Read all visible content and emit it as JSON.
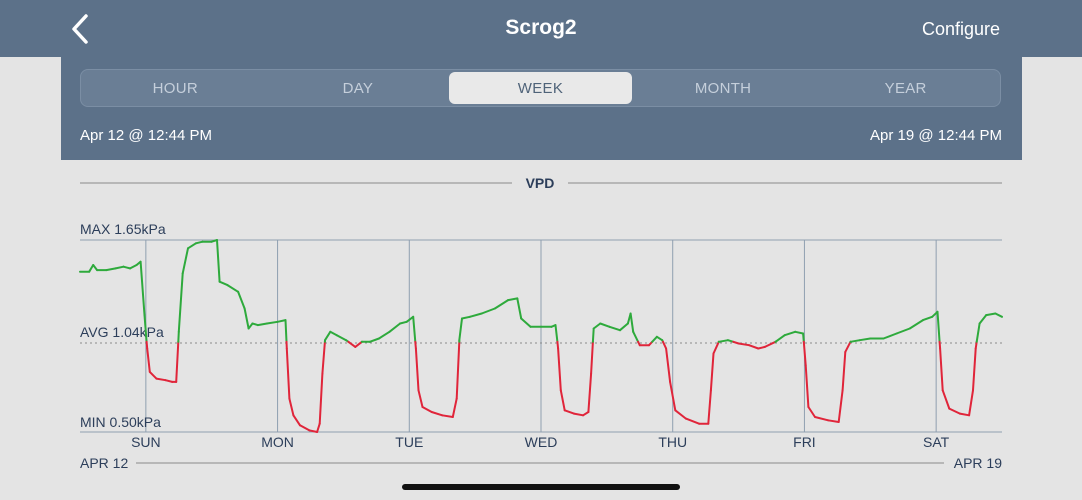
{
  "nav": {
    "title": "Scrog2",
    "configure_label": "Configure",
    "back_icon": "chevron-left-icon"
  },
  "range_tabs": [
    "HOUR",
    "DAY",
    "WEEK",
    "MONTH",
    "YEAR"
  ],
  "selected_tab": "WEEK",
  "date_range": {
    "start": "Apr 12 @ 12:44 PM",
    "end": "Apr 19 @ 12:44 PM"
  },
  "colors": {
    "header": "#5c7189",
    "above_avg": "#2eaa3c",
    "below_avg": "#e0253a",
    "grid": "#8f9fb0"
  },
  "chart_data": {
    "type": "line",
    "title": "VPD",
    "unit": "kPa",
    "y_max_label": "MAX 1.65kPa",
    "y_avg_label": "AVG 1.04kPa",
    "y_min_label": "MIN 0.50kPa",
    "ymax": 1.65,
    "yavg": 1.04,
    "ymin": 0.5,
    "ylim": [
      0.5,
      1.65
    ],
    "x_range": [
      0,
      7
    ],
    "x_labels": [
      "SUN",
      "MON",
      "TUE",
      "WED",
      "THU",
      "FRI",
      "SAT"
    ],
    "x_label_days": [
      0.5,
      1.5,
      2.5,
      3.5,
      4.5,
      5.5,
      6.5
    ],
    "start_date_label": "APR 12",
    "end_date_label": "APR 19",
    "series": [
      {
        "color_rule": "green above average, red below average",
        "points": [
          [
            0.0,
            1.46
          ],
          [
            0.07,
            1.46
          ],
          [
            0.1,
            1.5
          ],
          [
            0.13,
            1.47
          ],
          [
            0.2,
            1.47
          ],
          [
            0.27,
            1.48
          ],
          [
            0.33,
            1.49
          ],
          [
            0.38,
            1.48
          ],
          [
            0.43,
            1.5
          ],
          [
            0.46,
            1.52
          ],
          [
            0.49,
            1.2
          ],
          [
            0.51,
            1.0
          ],
          [
            0.53,
            0.86
          ],
          [
            0.58,
            0.82
          ],
          [
            0.65,
            0.81
          ],
          [
            0.7,
            0.8
          ],
          [
            0.73,
            0.8
          ],
          [
            0.75,
            1.1
          ],
          [
            0.78,
            1.45
          ],
          [
            0.82,
            1.6
          ],
          [
            0.88,
            1.63
          ],
          [
            0.93,
            1.64
          ],
          [
            1.0,
            1.64
          ],
          [
            1.04,
            1.65
          ],
          [
            1.06,
            1.4
          ],
          [
            1.12,
            1.38
          ],
          [
            1.2,
            1.34
          ],
          [
            1.25,
            1.24
          ],
          [
            1.28,
            1.12
          ],
          [
            1.31,
            1.15
          ],
          [
            1.35,
            1.14
          ],
          [
            1.42,
            1.15
          ],
          [
            1.5,
            1.16
          ],
          [
            1.56,
            1.17
          ],
          [
            1.57,
            1.0
          ],
          [
            1.59,
            0.7
          ],
          [
            1.62,
            0.6
          ],
          [
            1.67,
            0.54
          ],
          [
            1.74,
            0.51
          ],
          [
            1.8,
            0.5
          ],
          [
            1.82,
            0.55
          ],
          [
            1.84,
            0.85
          ],
          [
            1.86,
            1.05
          ],
          [
            1.9,
            1.1
          ],
          [
            1.95,
            1.08
          ],
          [
            2.02,
            1.05
          ],
          [
            2.09,
            1.01
          ],
          [
            2.14,
            1.04
          ],
          [
            2.2,
            1.04
          ],
          [
            2.27,
            1.06
          ],
          [
            2.35,
            1.1
          ],
          [
            2.43,
            1.15
          ],
          [
            2.48,
            1.16
          ],
          [
            2.53,
            1.19
          ],
          [
            2.55,
            1.0
          ],
          [
            2.57,
            0.75
          ],
          [
            2.6,
            0.65
          ],
          [
            2.67,
            0.62
          ],
          [
            2.75,
            0.6
          ],
          [
            2.83,
            0.59
          ],
          [
            2.86,
            0.7
          ],
          [
            2.88,
            1.05
          ],
          [
            2.9,
            1.18
          ],
          [
            2.96,
            1.19
          ],
          [
            3.05,
            1.21
          ],
          [
            3.15,
            1.24
          ],
          [
            3.25,
            1.29
          ],
          [
            3.32,
            1.3
          ],
          [
            3.35,
            1.18
          ],
          [
            3.42,
            1.13
          ],
          [
            3.5,
            1.13
          ],
          [
            3.58,
            1.13
          ],
          [
            3.61,
            1.14
          ],
          [
            3.63,
            1.0
          ],
          [
            3.65,
            0.75
          ],
          [
            3.68,
            0.63
          ],
          [
            3.75,
            0.61
          ],
          [
            3.82,
            0.6
          ],
          [
            3.86,
            0.62
          ],
          [
            3.88,
            0.85
          ],
          [
            3.9,
            1.12
          ],
          [
            3.95,
            1.15
          ],
          [
            4.02,
            1.13
          ],
          [
            4.1,
            1.11
          ],
          [
            4.16,
            1.15
          ],
          [
            4.18,
            1.21
          ],
          [
            4.2,
            1.1
          ],
          [
            4.25,
            1.02
          ],
          [
            4.32,
            1.02
          ],
          [
            4.38,
            1.07
          ],
          [
            4.42,
            1.05
          ],
          [
            4.45,
            1.0
          ],
          [
            4.48,
            0.8
          ],
          [
            4.52,
            0.63
          ],
          [
            4.6,
            0.58
          ],
          [
            4.7,
            0.55
          ],
          [
            4.77,
            0.55
          ],
          [
            4.79,
            0.75
          ],
          [
            4.81,
            0.97
          ],
          [
            4.85,
            1.04
          ],
          [
            4.92,
            1.05
          ],
          [
            5.0,
            1.03
          ],
          [
            5.08,
            1.02
          ],
          [
            5.15,
            1.0
          ],
          [
            5.2,
            1.01
          ],
          [
            5.28,
            1.04
          ],
          [
            5.35,
            1.08
          ],
          [
            5.43,
            1.1
          ],
          [
            5.49,
            1.09
          ],
          [
            5.51,
            0.9
          ],
          [
            5.53,
            0.65
          ],
          [
            5.58,
            0.59
          ],
          [
            5.68,
            0.57
          ],
          [
            5.76,
            0.56
          ],
          [
            5.79,
            0.75
          ],
          [
            5.81,
            0.98
          ],
          [
            5.85,
            1.04
          ],
          [
            5.92,
            1.05
          ],
          [
            6.0,
            1.06
          ],
          [
            6.1,
            1.06
          ],
          [
            6.2,
            1.09
          ],
          [
            6.3,
            1.12
          ],
          [
            6.4,
            1.17
          ],
          [
            6.47,
            1.19
          ],
          [
            6.51,
            1.22
          ],
          [
            6.53,
            1.0
          ],
          [
            6.55,
            0.75
          ],
          [
            6.6,
            0.64
          ],
          [
            6.68,
            0.61
          ],
          [
            6.75,
            0.6
          ],
          [
            6.78,
            0.75
          ],
          [
            6.8,
            1.0
          ],
          [
            6.83,
            1.15
          ],
          [
            6.88,
            1.2
          ],
          [
            6.95,
            1.21
          ],
          [
            7.0,
            1.19
          ]
        ]
      }
    ]
  }
}
